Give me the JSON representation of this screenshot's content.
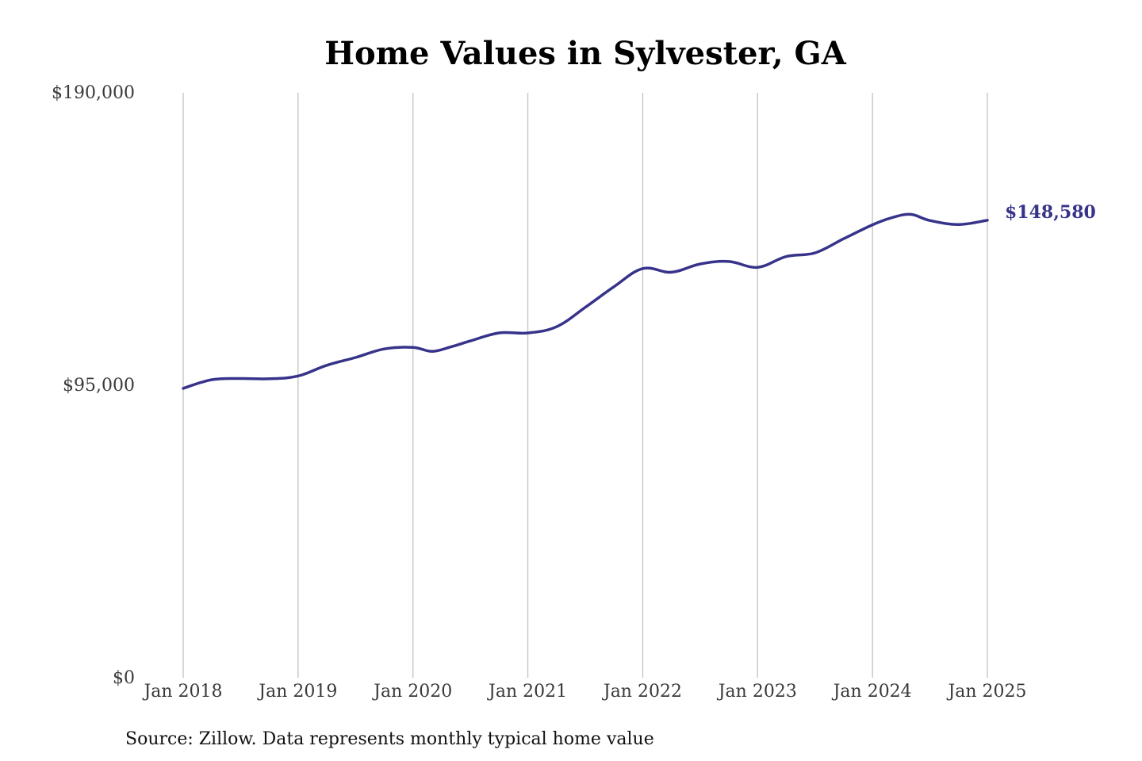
{
  "chart_data": {
    "type": "line",
    "title": "Home Values in Sylvester, GA",
    "source_note": "Source: Zillow. Data represents monthly typical home value",
    "colors": {
      "line": "#37338a",
      "end_label": "#37338a",
      "grid": "#c2c2c2",
      "tick_text": "#3a3a3a",
      "title": "#000000"
    },
    "grid": {
      "vertical": true,
      "horizontal": false
    },
    "xlim": [
      "2018-01",
      "2025-01"
    ],
    "ylim": [
      0,
      190000
    ],
    "y_ticks": [
      {
        "value": 0,
        "label": "$0"
      },
      {
        "value": 95000,
        "label": "$95,000"
      },
      {
        "value": 190000,
        "label": "$190,000"
      }
    ],
    "x_ticks": [
      {
        "value": "2018-01",
        "label": "Jan 2018"
      },
      {
        "value": "2019-01",
        "label": "Jan 2019"
      },
      {
        "value": "2020-01",
        "label": "Jan 2020"
      },
      {
        "value": "2021-01",
        "label": "Jan 2021"
      },
      {
        "value": "2022-01",
        "label": "Jan 2022"
      },
      {
        "value": "2023-01",
        "label": "Jan 2023"
      },
      {
        "value": "2024-01",
        "label": "Jan 2024"
      },
      {
        "value": "2025-01",
        "label": "Jan 2025"
      }
    ],
    "end_label": "$148,580",
    "series": [
      {
        "x": [
          "2018-01",
          "2018-04",
          "2018-07",
          "2018-10",
          "2019-01",
          "2019-04",
          "2019-07",
          "2019-10",
          "2020-01",
          "2020-03",
          "2020-05",
          "2020-07",
          "2020-10",
          "2021-01",
          "2021-04",
          "2021-07",
          "2021-10",
          "2022-01",
          "2022-04",
          "2022-07",
          "2022-10",
          "2023-01",
          "2023-04",
          "2023-07",
          "2023-10",
          "2024-01",
          "2024-03",
          "2024-05",
          "2024-07",
          "2024-10",
          "2025-01"
        ],
        "values": [
          94000,
          96800,
          97200,
          97100,
          98000,
          101500,
          104000,
          106800,
          107300,
          106000,
          107500,
          109400,
          112000,
          112000,
          114000,
          120300,
          127000,
          132900,
          131700,
          134400,
          135200,
          133300,
          136800,
          138000,
          142600,
          147100,
          149400,
          150500,
          148500,
          147200,
          148580
        ]
      }
    ]
  }
}
